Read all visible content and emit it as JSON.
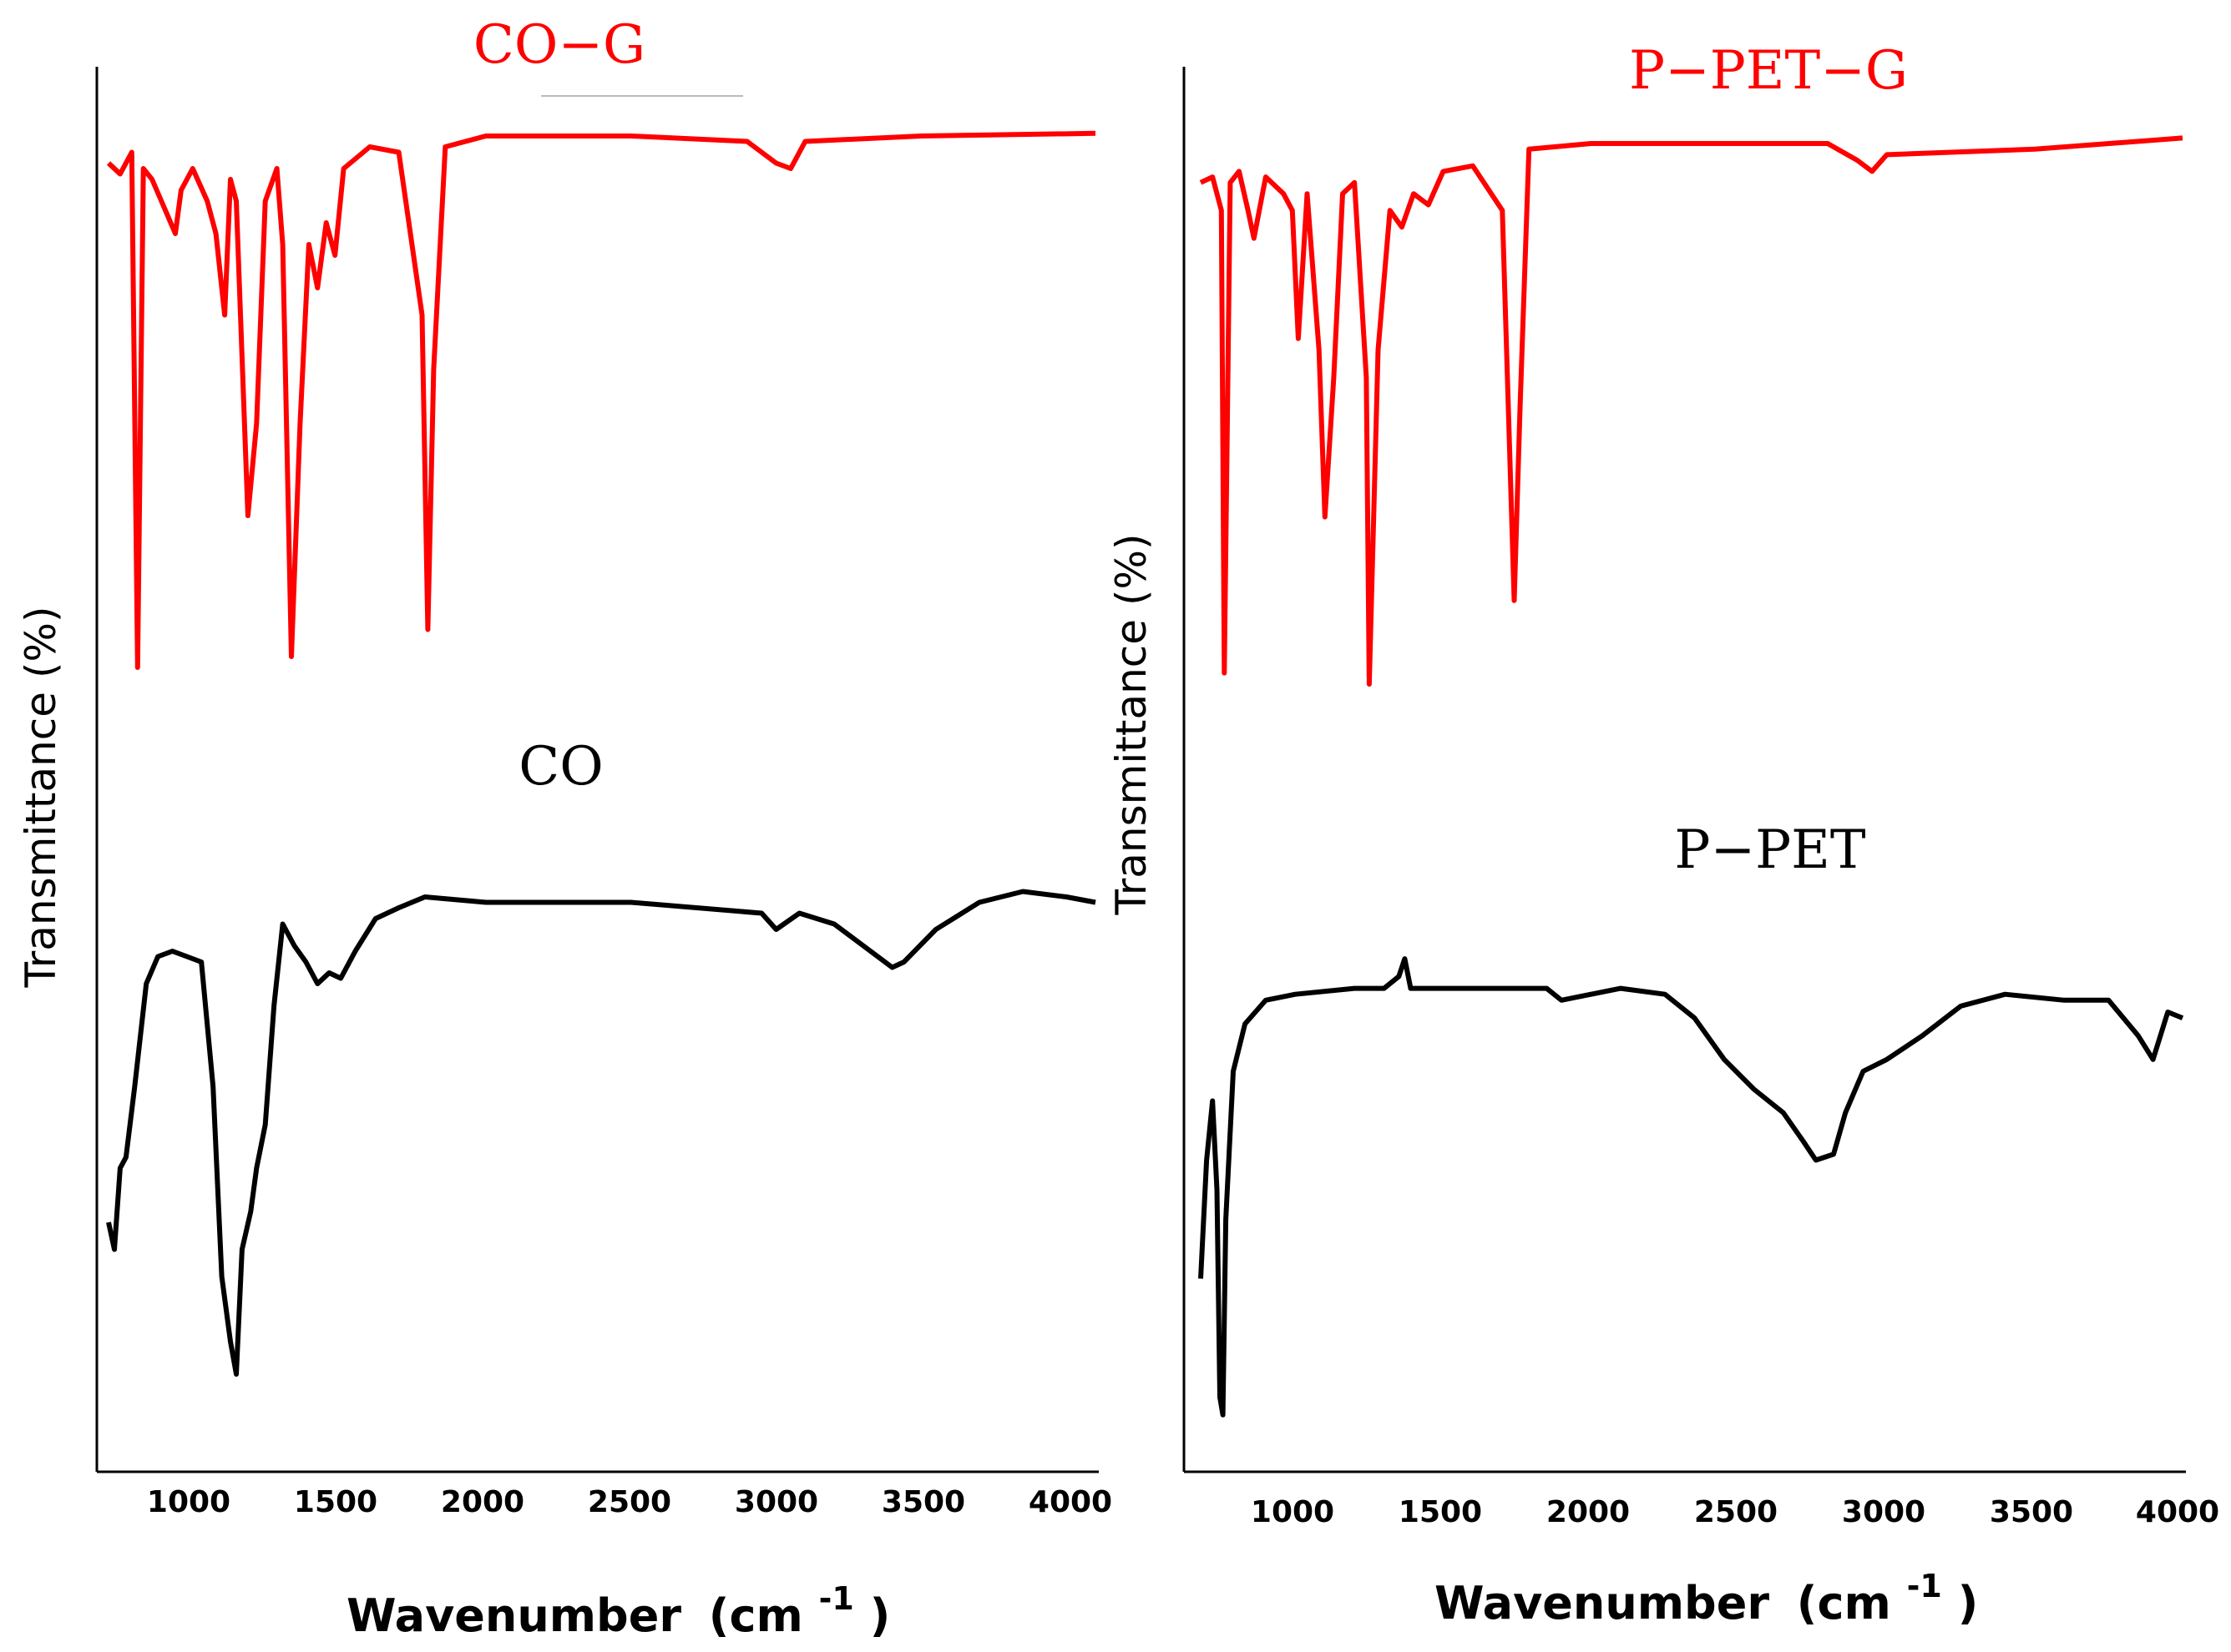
{
  "colors": {
    "red": "#ff0000",
    "black": "#000000"
  },
  "chart_data": [
    {
      "type": "line",
      "title": "",
      "xlabel": "Wavenumber (cm-1)",
      "xlabel_main": "Wavenumber",
      "xlabel_unit_open": "(cm",
      "xlabel_unit_sup": "-1",
      "xlabel_unit_close": ")",
      "ylabel": "Transmittance (%)",
      "xlim": [
        700,
        4100
      ],
      "x_ticks": [
        "1000",
        "1500",
        "2000",
        "2500",
        "3000",
        "3500",
        "4000"
      ],
      "grid": false,
      "series": [
        {
          "name": "CO−G",
          "color": "#ff0000",
          "offset": 0,
          "points": [
            [
              700,
              0.93
            ],
            [
              740,
              0.91
            ],
            [
              780,
              0.95
            ],
            [
              800,
              0.0
            ],
            [
              820,
              0.92
            ],
            [
              850,
              0.9
            ],
            [
              890,
              0.85
            ],
            [
              930,
              0.8
            ],
            [
              950,
              0.88
            ],
            [
              990,
              0.92
            ],
            [
              1040,
              0.86
            ],
            [
              1070,
              0.8
            ],
            [
              1100,
              0.65
            ],
            [
              1120,
              0.9
            ],
            [
              1140,
              0.86
            ],
            [
              1180,
              0.28
            ],
            [
              1210,
              0.45
            ],
            [
              1240,
              0.86
            ],
            [
              1280,
              0.92
            ],
            [
              1300,
              0.78
            ],
            [
              1330,
              0.02
            ],
            [
              1360,
              0.45
            ],
            [
              1390,
              0.78
            ],
            [
              1420,
              0.7
            ],
            [
              1450,
              0.82
            ],
            [
              1480,
              0.76
            ],
            [
              1510,
              0.92
            ],
            [
              1600,
              0.96
            ],
            [
              1700,
              0.95
            ],
            [
              1780,
              0.65
            ],
            [
              1800,
              0.07
            ],
            [
              1820,
              0.55
            ],
            [
              1860,
              0.96
            ],
            [
              2000,
              0.98
            ],
            [
              2500,
              0.98
            ],
            [
              2900,
              0.97
            ],
            [
              3000,
              0.93
            ],
            [
              3050,
              0.92
            ],
            [
              3100,
              0.97
            ],
            [
              3500,
              0.98
            ],
            [
              4100,
              0.985
            ]
          ]
        },
        {
          "name": "CO",
          "color": "#000000",
          "offset": 0,
          "points": [
            [
              700,
              0.3
            ],
            [
              720,
              0.25
            ],
            [
              740,
              0.4
            ],
            [
              760,
              0.42
            ],
            [
              790,
              0.55
            ],
            [
              830,
              0.74
            ],
            [
              870,
              0.79
            ],
            [
              920,
              0.8
            ],
            [
              970,
              0.79
            ],
            [
              1020,
              0.78
            ],
            [
              1060,
              0.55
            ],
            [
              1090,
              0.2
            ],
            [
              1120,
              0.08
            ],
            [
              1140,
              0.02
            ],
            [
              1160,
              0.25
            ],
            [
              1190,
              0.32
            ],
            [
              1210,
              0.4
            ],
            [
              1240,
              0.48
            ],
            [
              1270,
              0.7
            ],
            [
              1300,
              0.85
            ],
            [
              1340,
              0.81
            ],
            [
              1380,
              0.78
            ],
            [
              1420,
              0.74
            ],
            [
              1460,
              0.76
            ],
            [
              1500,
              0.75
            ],
            [
              1550,
              0.8
            ],
            [
              1620,
              0.86
            ],
            [
              1700,
              0.88
            ],
            [
              1790,
              0.9
            ],
            [
              2000,
              0.89
            ],
            [
              2500,
              0.89
            ],
            [
              2950,
              0.87
            ],
            [
              3000,
              0.84
            ],
            [
              3080,
              0.87
            ],
            [
              3200,
              0.85
            ],
            [
              3300,
              0.81
            ],
            [
              3400,
              0.77
            ],
            [
              3440,
              0.78
            ],
            [
              3550,
              0.84
            ],
            [
              3700,
              0.89
            ],
            [
              3850,
              0.91
            ],
            [
              4000,
              0.9
            ],
            [
              4100,
              0.89
            ]
          ]
        }
      ],
      "labels": [
        {
          "text": "CO−G",
          "color": "#ff0000"
        },
        {
          "text": "CO",
          "color": "#000000"
        }
      ]
    },
    {
      "type": "line",
      "title": "",
      "xlabel": "Wavenumber (cm-1)",
      "xlabel_main": "Wavenumber",
      "xlabel_unit_open": "(cm",
      "xlabel_unit_sup": "-1",
      "xlabel_unit_close": ")",
      "ylabel": "Transmittance (%)",
      "xlim": [
        680,
        4000
      ],
      "x_ticks": [
        "1000",
        "1500",
        "2000",
        "2500",
        "3000",
        "3500",
        "4000"
      ],
      "grid": false,
      "series": [
        {
          "name": "P−PET−G",
          "color": "#ff0000",
          "points": [
            [
              680,
              0.9
            ],
            [
              720,
              0.91
            ],
            [
              750,
              0.85
            ],
            [
              760,
              0.02
            ],
            [
              780,
              0.9
            ],
            [
              810,
              0.92
            ],
            [
              840,
              0.85
            ],
            [
              860,
              0.8
            ],
            [
              900,
              0.91
            ],
            [
              960,
              0.88
            ],
            [
              990,
              0.85
            ],
            [
              1010,
              0.62
            ],
            [
              1040,
              0.88
            ],
            [
              1080,
              0.6
            ],
            [
              1100,
              0.3
            ],
            [
              1130,
              0.55
            ],
            [
              1160,
              0.88
            ],
            [
              1200,
              0.9
            ],
            [
              1240,
              0.55
            ],
            [
              1250,
              0.0
            ],
            [
              1280,
              0.6
            ],
            [
              1320,
              0.85
            ],
            [
              1360,
              0.82
            ],
            [
              1400,
              0.88
            ],
            [
              1450,
              0.86
            ],
            [
              1500,
              0.92
            ],
            [
              1600,
              0.93
            ],
            [
              1700,
              0.85
            ],
            [
              1740,
              0.15
            ],
            [
              1760,
              0.5
            ],
            [
              1790,
              0.96
            ],
            [
              2000,
              0.97
            ],
            [
              2800,
              0.97
            ],
            [
              2900,
              0.94
            ],
            [
              2950,
              0.92
            ],
            [
              3000,
              0.95
            ],
            [
              3500,
              0.96
            ],
            [
              4000,
              0.98
            ]
          ]
        },
        {
          "name": "P−PET",
          "color": "#000000",
          "points": [
            [
              680,
              0.25
            ],
            [
              700,
              0.45
            ],
            [
              720,
              0.55
            ],
            [
              735,
              0.4
            ],
            [
              745,
              0.05
            ],
            [
              755,
              0.02
            ],
            [
              765,
              0.35
            ],
            [
              790,
              0.6
            ],
            [
              830,
              0.68
            ],
            [
              900,
              0.72
            ],
            [
              1000,
              0.73
            ],
            [
              1200,
              0.74
            ],
            [
              1300,
              0.74
            ],
            [
              1350,
              0.76
            ],
            [
              1370,
              0.79
            ],
            [
              1390,
              0.74
            ],
            [
              1600,
              0.74
            ],
            [
              1850,
              0.74
            ],
            [
              1900,
              0.72
            ],
            [
              2100,
              0.74
            ],
            [
              2250,
              0.73
            ],
            [
              2350,
              0.69
            ],
            [
              2450,
              0.62
            ],
            [
              2550,
              0.57
            ],
            [
              2650,
              0.53
            ],
            [
              2720,
              0.48
            ],
            [
              2760,
              0.45
            ],
            [
              2820,
              0.46
            ],
            [
              2860,
              0.53
            ],
            [
              2920,
              0.6
            ],
            [
              3000,
              0.62
            ],
            [
              3120,
              0.66
            ],
            [
              3250,
              0.71
            ],
            [
              3400,
              0.73
            ],
            [
              3600,
              0.72
            ],
            [
              3750,
              0.72
            ],
            [
              3850,
              0.66
            ],
            [
              3900,
              0.62
            ],
            [
              3950,
              0.7
            ],
            [
              4000,
              0.69
            ]
          ]
        }
      ],
      "labels": [
        {
          "text": "P−PET−G",
          "color": "#ff0000"
        },
        {
          "text": "P−PET",
          "color": "#000000"
        }
      ]
    }
  ]
}
